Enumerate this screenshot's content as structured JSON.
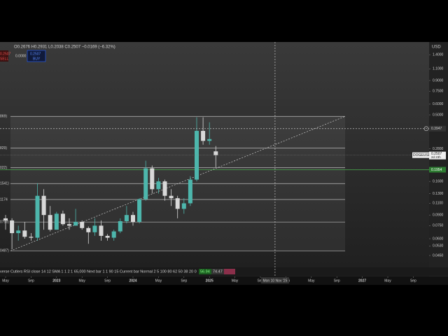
{
  "header": {
    "ohlc": "O0.2676 H0.2931 L0.2038 C0.2507 −0.0169 (−6.32%)",
    "sell_price": "0.2507",
    "sell": "SELL",
    "spread": "0.0000",
    "buy_price": "0.2507",
    "buy": "BUY",
    "currency": "USD"
  },
  "chart_data": {
    "type": "candlestick",
    "log_scale": true,
    "x": [
      "2022-05",
      "2022-06",
      "2022-07",
      "2022-08",
      "2022-09",
      "2022-10",
      "2022-11",
      "2022-12",
      "2023-01",
      "2023-02",
      "2023-03",
      "2023-04",
      "2023-05",
      "2023-06",
      "2023-07",
      "2023-08",
      "2023-09",
      "2023-10",
      "2023-11",
      "2023-12",
      "2024-01",
      "2024-02",
      "2024-03",
      "2024-04",
      "2024-05",
      "2024-06",
      "2024-07",
      "2024-08",
      "2024-09",
      "2024-10",
      "2024-11",
      "2024-12",
      "2025-01",
      "2025-02"
    ],
    "open": [
      0.085,
      0.082,
      0.066,
      0.069,
      0.062,
      0.061,
      0.125,
      0.09,
      0.07,
      0.092,
      0.077,
      0.075,
      0.08,
      0.072,
      0.067,
      0.075,
      0.063,
      0.061,
      0.068,
      0.081,
      0.09,
      0.08,
      0.118,
      0.2,
      0.14,
      0.16,
      0.125,
      0.12,
      0.1,
      0.11,
      0.165,
      0.38,
      0.32,
      0.2676
    ],
    "high": [
      0.09,
      0.085,
      0.075,
      0.08,
      0.066,
      0.155,
      0.14,
      0.105,
      0.095,
      0.097,
      0.085,
      0.1,
      0.082,
      0.074,
      0.085,
      0.082,
      0.065,
      0.07,
      0.085,
      0.105,
      0.095,
      0.12,
      0.228,
      0.21,
      0.17,
      0.165,
      0.14,
      0.125,
      0.12,
      0.175,
      0.48,
      0.48,
      0.44,
      0.2931
    ],
    "low": [
      0.07,
      0.05,
      0.058,
      0.06,
      0.058,
      0.058,
      0.07,
      0.068,
      0.07,
      0.075,
      0.07,
      0.075,
      0.07,
      0.055,
      0.063,
      0.058,
      0.058,
      0.058,
      0.066,
      0.078,
      0.075,
      0.078,
      0.115,
      0.13,
      0.13,
      0.115,
      0.105,
      0.085,
      0.092,
      0.105,
      0.16,
      0.3,
      0.3,
      0.2038
    ],
    "close": [
      0.082,
      0.066,
      0.069,
      0.062,
      0.061,
      0.125,
      0.09,
      0.07,
      0.092,
      0.077,
      0.075,
      0.08,
      0.072,
      0.067,
      0.075,
      0.063,
      0.061,
      0.068,
      0.081,
      0.09,
      0.08,
      0.118,
      0.2,
      0.14,
      0.16,
      0.125,
      0.12,
      0.1,
      0.11,
      0.165,
      0.38,
      0.32,
      0.33,
      0.2507
    ],
    "up_color": "#4db6ac",
    "down_color": "#d8d8d8",
    "ylim": [
      0.0376,
      1.74
    ],
    "yticks": [
      {
        "value": 1.4,
        "label": "1.4000"
      },
      {
        "value": 1.1,
        "label": "1.1000"
      },
      {
        "value": 0.9,
        "label": "0.9000"
      },
      {
        "value": 0.75,
        "label": "0.7500"
      },
      {
        "value": 0.6,
        "label": "0.6000"
      },
      {
        "value": 0.5,
        "label": "0.5000"
      },
      {
        "value": 0.28,
        "label": "0.2800"
      },
      {
        "value": 0.16,
        "label": "0.1600"
      },
      {
        "value": 0.13,
        "label": "0.1300"
      },
      {
        "value": 0.11,
        "label": "0.1100"
      },
      {
        "value": 0.09,
        "label": "0.0900"
      },
      {
        "value": 0.075,
        "label": "0.0750"
      },
      {
        "value": 0.06,
        "label": "0.0600"
      },
      {
        "value": 0.053,
        "label": "0.0530"
      },
      {
        "value": 0.045,
        "label": "0.0450"
      }
    ],
    "xticks": [
      {
        "value": "2022-05",
        "label": "May"
      },
      {
        "value": "2022-09",
        "label": "Sep"
      },
      {
        "value": "2023-01",
        "label": "2023"
      },
      {
        "value": "2023-05",
        "label": "May"
      },
      {
        "value": "2023-09",
        "label": "Sep"
      },
      {
        "value": "2024-01",
        "label": "2024"
      },
      {
        "value": "2024-05",
        "label": "May"
      },
      {
        "value": "2024-09",
        "label": "Sep"
      },
      {
        "value": "2025-01",
        "label": "2025"
      },
      {
        "value": "2025-05",
        "label": "May"
      },
      {
        "value": "2025-09",
        "label": "Sep"
      },
      {
        "value": "2026-01",
        "label": "2026"
      },
      {
        "value": "2026-05",
        "label": "May"
      },
      {
        "value": "2026-09",
        "label": "Sep"
      },
      {
        "value": "2027-01",
        "label": "2027"
      },
      {
        "value": "2027-05",
        "label": "May"
      },
      {
        "value": "2027-09",
        "label": "Sep"
      }
    ],
    "levels": [
      {
        "value": 0.4869,
        "label": "869)"
      },
      {
        "value": 0.2829,
        "label": "829)"
      },
      {
        "value": 0.2022,
        "label": "022)"
      },
      {
        "value": 0.1541,
        "label": "1541)"
      },
      {
        "value": 0.1174,
        "label": "1174"
      },
      {
        "value": 0.0798,
        "label": "0798)"
      },
      {
        "value": 0.0487,
        "label": "0487)"
      }
    ],
    "crosshair": {
      "date": "2025-11-10",
      "price": 0.3947,
      "date_label": "Mon 10 Nov '25",
      "price_label": "0.3947"
    },
    "last_price": {
      "value": 0.2507,
      "label": "0.2507",
      "symbol": "DOGEUSD",
      "countdown": "2d 23h"
    },
    "green_line": {
      "value": 0.1954,
      "label": "0.1954"
    }
  },
  "indicator": {
    "text": "verse Cutlers RSI close 14 12 SMA 1 1 2 1 65,000 Next bar 1 1 90 15 Current bar Normal 2 5 100 80 62 50 38 20 0",
    "v1": "56.94",
    "v2": "74.47"
  }
}
